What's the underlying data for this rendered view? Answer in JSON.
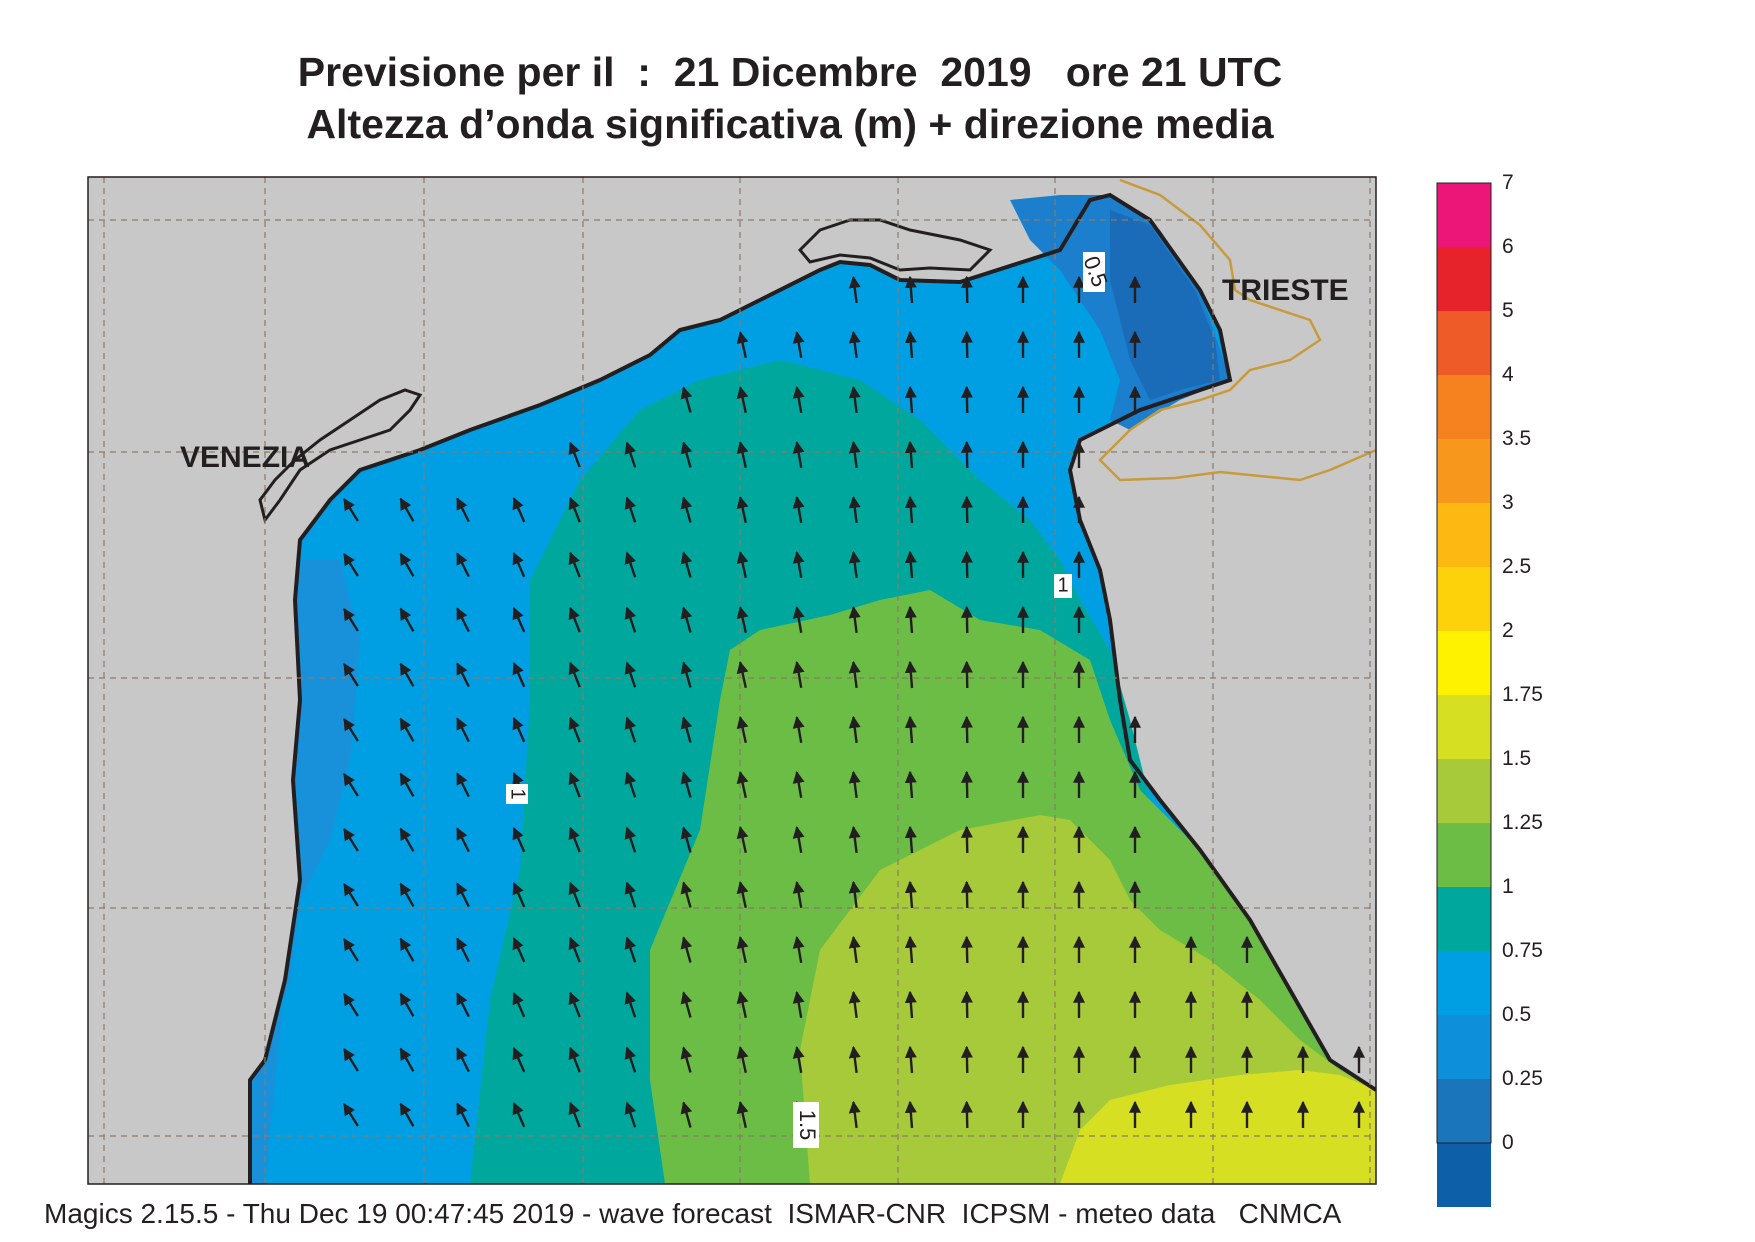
{
  "title": {
    "line1": "Previsione per il  :  21 Dicembre  2019   ore 21 UTC",
    "line2": "Altezza d’onda significativa (m) + direzione media"
  },
  "map": {
    "region": "Northern Adriatic Sea",
    "places": [
      {
        "name": "VENEZIA",
        "kind": "city"
      },
      {
        "name": "TRIESTE",
        "kind": "city"
      }
    ],
    "contour_labels": [
      "0.5",
      "1",
      "1",
      "1.5"
    ],
    "land_color": "#c8c8c8",
    "coastline_color": "#231f20",
    "border_color": "#c89a3c",
    "arrow_color": "#231f20",
    "arrow_field": "mean wave direction"
  },
  "colorbar": {
    "levels": [
      "7",
      "6",
      "5",
      "4",
      "3.5",
      "3",
      "2.5",
      "2",
      "1.75",
      "1.5",
      "1.25",
      "1",
      "0.75",
      "0.5",
      "0.25",
      "0"
    ],
    "colors": [
      "#ec1679",
      "#e6232a",
      "#ef5a29",
      "#f5821f",
      "#f7981d",
      "#fdb912",
      "#fdd20a",
      "#fef200",
      "#d7df23",
      "#a6ca39",
      "#6cbd45",
      "#00a79d",
      "#009fe3",
      "#0e8fd9",
      "#1b75bb",
      "#0d5fa8"
    ]
  },
  "footer": "Magics 2.15.5 - Thu Dec 19 00:47:45 2019 - wave forecast  ISMAR-CNR  ICPSM - meteo data   CNMCA"
}
